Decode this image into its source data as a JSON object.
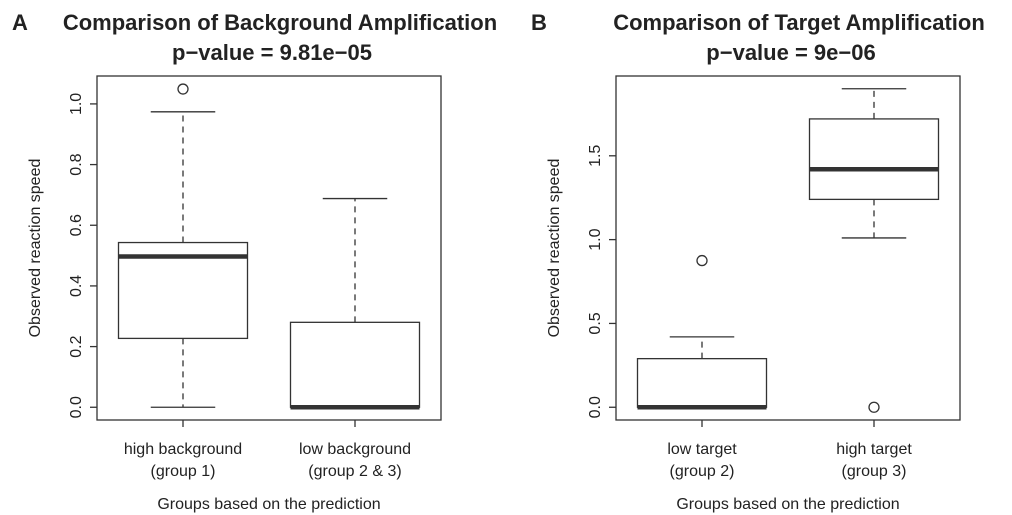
{
  "chart_data": [
    {
      "type": "box",
      "panel_label": "A",
      "title": "Comparison of Background Amplification",
      "subtitle": "p−value = 9.81e−05",
      "y_label": "Observed reaction speed",
      "x_label": "Groups based on the prediction",
      "categories": [
        [
          "high background",
          "(group 1)"
        ],
        [
          "low background",
          "(group 2 & 3)"
        ]
      ],
      "low": [
        0,
        0
      ],
      "q1": [
        0.227,
        0
      ],
      "median": [
        0.497,
        0
      ],
      "q3": [
        0.543,
        0.28
      ],
      "high": [
        0.974,
        0.688
      ],
      "outliers": [
        [
          1.049
        ],
        []
      ],
      "ylim": [
        -0.042,
        1.092
      ],
      "yticks": [
        {
          "value": 0,
          "label": "0.0"
        },
        0.2,
        0.4,
        0.6,
        0.8,
        {
          "value": 1,
          "label": "1.0"
        }
      ]
    },
    {
      "type": "box",
      "panel_label": "B",
      "title": "Comparison of Target Amplification",
      "subtitle": "p−value = 9e−06",
      "y_label": "Observed reaction speed",
      "x_label": "Groups based on the prediction",
      "categories": [
        [
          "low target",
          "(group 2)"
        ],
        [
          "high target",
          "(group 3)"
        ]
      ],
      "low": [
        0,
        1.01
      ],
      "q1": [
        0,
        1.24
      ],
      "median": [
        0,
        1.42
      ],
      "q3": [
        0.29,
        1.72
      ],
      "high": [
        0.42,
        1.9
      ],
      "outliers": [
        [
          0.875
        ],
        [
          0
        ]
      ],
      "ylim": [
        -0.076,
        1.976
      ],
      "yticks": [
        {
          "value": 0,
          "label": "0.0"
        },
        0.5,
        {
          "value": 1,
          "label": "1.0"
        },
        1.5
      ]
    }
  ]
}
